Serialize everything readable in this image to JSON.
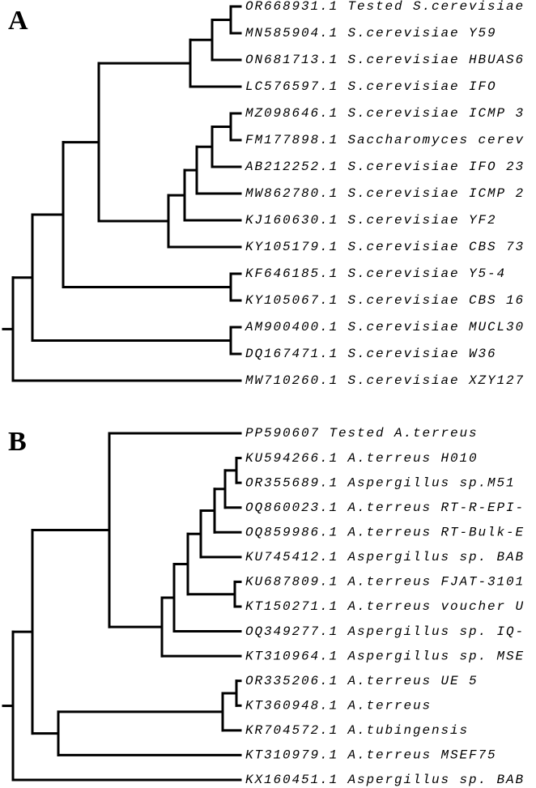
{
  "panels": [
    {
      "label": "A",
      "leaves": [
        "OR668931.1 Tested S.cerevisiae",
        "MN585904.1 S.cerevisiae Y59",
        "ON681713.1 S.cerevisiae HBUAS6",
        "LC576597.1 S.cerevisiae IFO",
        "MZ098646.1 S.cerevisiae ICMP 3",
        "FM177898.1 Saccharomyces cerev",
        "AB212252.1 S.cerevisiae IFO 23",
        "MW862780.1 S.cerevisiae ICMP 2",
        "KJ160630.1 S.cerevisiae YF2",
        "KY105179.1 S.cerevisiae CBS 73",
        "KF646185.1 S.cerevisiae Y5-4",
        "KY105067.1 S.cerevisiae CBS 16",
        "AM900400.1 S.cerevisiae MUCL30",
        "DQ167471.1 S.cerevisiae W36",
        "MW710260.1 S.cerevisiae XZY127"
      ]
    },
    {
      "label": "B",
      "leaves": [
        "PP590607 Tested A.terreus",
        "KU594266.1 A.terreus H010",
        "OR355689.1 Aspergillus sp.M51",
        "OQ860023.1 A.terreus RT-R-EPI-",
        "OQ859986.1 A.terreus RT-Bulk-E",
        "KU745412.1 Aspergillus sp. BAB",
        "KU687809.1 A.terreus FJAT-3101",
        "KT150271.1 A.terreus voucher U",
        "OQ349277.1 Aspergillus sp. IQ-",
        "KT310964.1 Aspergillus sp. MSE",
        "OR335206.1 A.terreus UE 5",
        "KT360948.1 A.terreus",
        "KR704572.1 A.tubingensis",
        "KT310979.1 A.terreus MSEF75",
        "KX160451.1 Aspergillus sp. BAB"
      ]
    }
  ]
}
